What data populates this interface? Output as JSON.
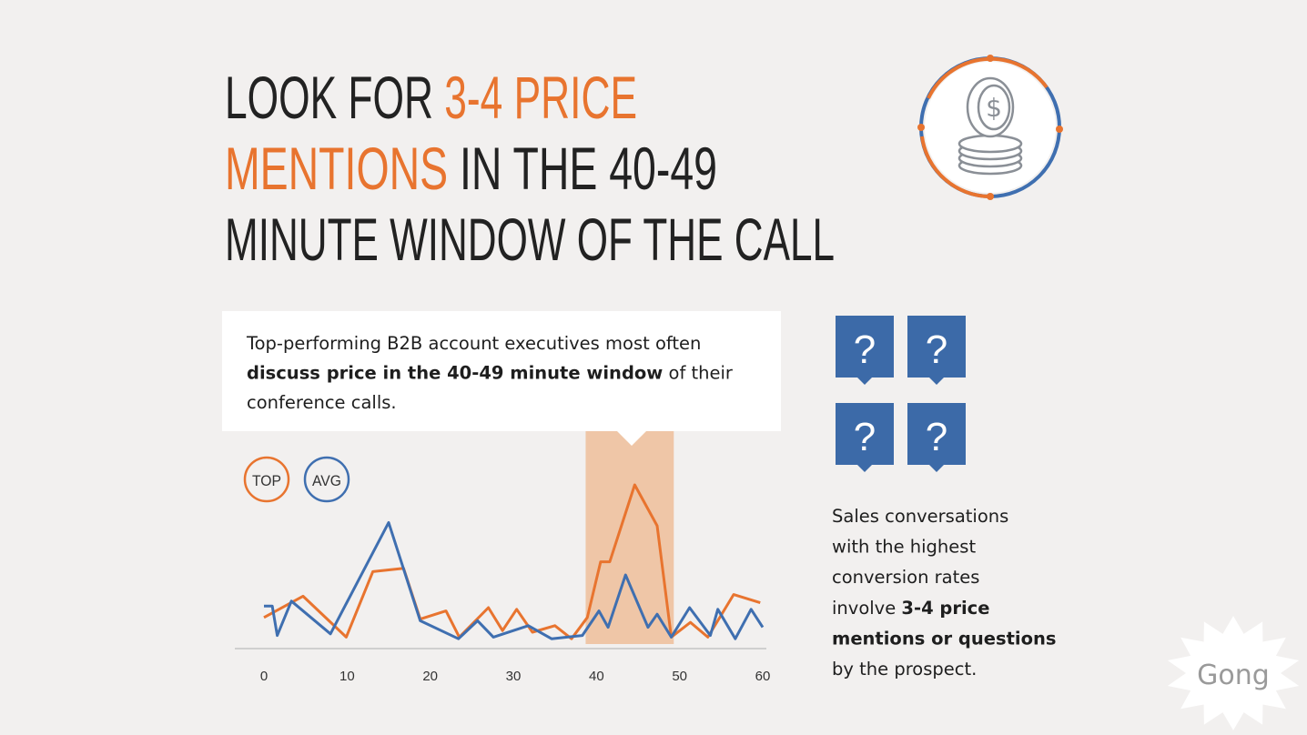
{
  "title": {
    "lines": [
      [
        {
          "text": "LOOK FOR ",
          "color": "#222222"
        },
        {
          "text": "3-4 PRICE",
          "color": "#e8742f"
        }
      ],
      [
        {
          "text": "MENTIONS",
          "color": "#e8742f"
        },
        {
          "text": " IN THE 40-49",
          "color": "#222222"
        }
      ],
      [
        {
          "text": "MINUTE WINDOW OF THE CALL",
          "color": "#222222"
        }
      ]
    ]
  },
  "callout": {
    "lines": [
      [
        {
          "text": "Top-performing B2B account executives most often",
          "bold": false
        }
      ],
      [
        {
          "text": "discuss price in the 40-49 minute window",
          "bold": true
        },
        {
          "text": " of their",
          "bold": false
        }
      ],
      [
        {
          "text": "conference calls.",
          "bold": false
        }
      ]
    ]
  },
  "chart_data": {
    "type": "line",
    "xlim": [
      0,
      60
    ],
    "xticks": [
      0,
      10,
      20,
      30,
      40,
      50,
      60
    ],
    "ylim": [
      0,
      10
    ],
    "highlight_range": [
      38.7,
      49.3
    ],
    "highlight_color": "#efc6a7",
    "series": [
      {
        "name": "TOP",
        "color": "#e8742f",
        "x": [
          0,
          4.7,
          9.9,
          13.1,
          16.8,
          18.8,
          21.9,
          23.5,
          27.0,
          28.7,
          30.4,
          32.3,
          35.0,
          37.0,
          38.9,
          40.5,
          41.6,
          44.6,
          47.3,
          49.0,
          51.3,
          53.4,
          56.5,
          59.7
        ],
        "values": [
          1.9,
          3.2,
          0.7,
          4.7,
          4.9,
          1.8,
          2.3,
          0.7,
          2.5,
          1.1,
          2.4,
          1.0,
          1.4,
          0.6,
          1.9,
          5.3,
          5.3,
          10.0,
          7.5,
          0.7,
          1.6,
          0.7,
          3.3,
          2.8
        ]
      },
      {
        "name": "AVG",
        "color": "#3f6fb0",
        "x": [
          0,
          1.0,
          1.6,
          3.3,
          8.0,
          15.0,
          18.8,
          23.4,
          25.7,
          27.6,
          31.8,
          34.6,
          38.3,
          40.3,
          41.4,
          43.5,
          46.2,
          47.3,
          49.0,
          51.2,
          53.7,
          54.6,
          56.7,
          58.6,
          60
        ],
        "values": [
          2.6,
          2.6,
          0.8,
          2.9,
          0.9,
          7.7,
          1.7,
          0.6,
          1.7,
          0.7,
          1.4,
          0.6,
          0.8,
          2.3,
          1.3,
          4.5,
          1.3,
          2.1,
          0.7,
          2.5,
          0.8,
          2.4,
          0.6,
          2.4,
          1.3
        ]
      }
    ]
  },
  "question_icons": [
    "?",
    "?",
    "?",
    "?"
  ],
  "side_text": {
    "lines": [
      [
        {
          "text": "Sales conversations",
          "bold": false
        }
      ],
      [
        {
          "text": "with the highest",
          "bold": false
        }
      ],
      [
        {
          "text": "conversion rates",
          "bold": false
        }
      ],
      [
        {
          "text": "involve ",
          "bold": false
        },
        {
          "text": "3-4 price",
          "bold": true
        }
      ],
      [
        {
          "text": "mentions or questions",
          "bold": true
        }
      ],
      [
        {
          "text": "by the prospect.",
          "bold": false
        }
      ]
    ]
  },
  "logo": "Gong"
}
